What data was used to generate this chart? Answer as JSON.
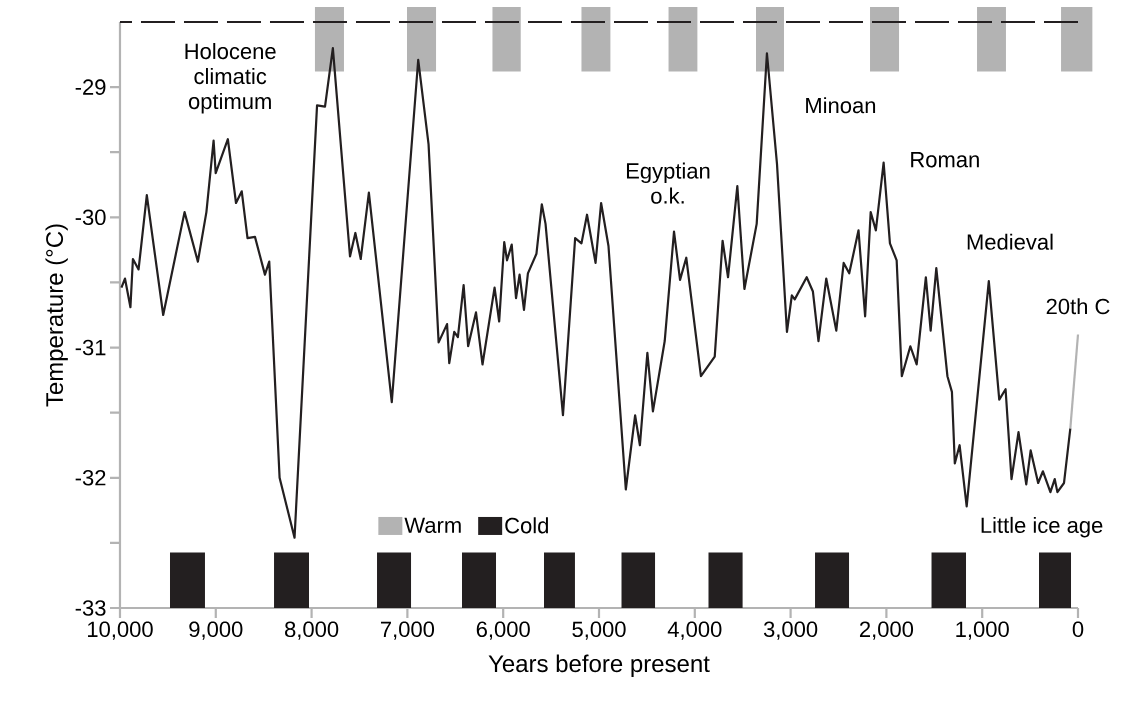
{
  "chart_data": {
    "type": "line",
    "xlabel": "Years before present",
    "ylabel": "Temperature (°C)",
    "xlim": [
      10000,
      0
    ],
    "ylim": [
      -33,
      -28.5
    ],
    "xticks": [
      {
        "value": 10000,
        "label": "10,000"
      },
      {
        "value": 9000,
        "label": "9,000"
      },
      {
        "value": 8000,
        "label": "8,000"
      },
      {
        "value": 7000,
        "label": "7,000"
      },
      {
        "value": 6000,
        "label": "6,000"
      },
      {
        "value": 5000,
        "label": "5,000"
      },
      {
        "value": 4000,
        "label": "4,000"
      },
      {
        "value": 3000,
        "label": "3,000"
      },
      {
        "value": 2000,
        "label": "2,000"
      },
      {
        "value": 1000,
        "label": "1,000"
      },
      0
    ],
    "yticks": [
      -33,
      {
        "value": -32.5,
        "label": null
      },
      -32,
      {
        "value": -31.5,
        "label": null
      },
      -31,
      {
        "value": -30.5,
        "label": null
      },
      -30,
      {
        "value": -29.5,
        "label": null
      },
      -29
    ],
    "series": [
      {
        "color": "#231f20",
        "x": [
          9985,
          9948,
          9891,
          9865,
          9806,
          9720,
          9549,
          9326,
          9187,
          9098,
          9023,
          9001,
          8874,
          8789,
          8729,
          8669,
          8591,
          8487,
          8442,
          8334,
          8178,
          7943,
          7860,
          7778,
          7599,
          7543,
          7487,
          7402,
          7163,
          6887,
          6779,
          6674,
          6586,
          6563,
          6511,
          6473,
          6413,
          6366,
          6284,
          6216,
          6090,
          6042,
          5989,
          5960,
          5911,
          5866,
          5829,
          5783,
          5742,
          5653,
          5597,
          5558,
          5376,
          5249,
          5183,
          5125,
          5036,
          4978,
          4901,
          4720,
          4623,
          4573,
          4495,
          4437,
          4314,
          4217,
          4154,
          4089,
          3936,
          3792,
          3710,
          3653,
          3556,
          3482,
          3354,
          3247,
          3142,
          3038,
          2987,
          2957,
          2832,
          2767,
          2709,
          2628,
          2523,
          2446,
          2388,
          2291,
          2222,
          2164,
          2110,
          2029,
          1963,
          1893,
          1839,
          1750,
          1684,
          1588,
          1538,
          1479,
          1363,
          1316,
          1286,
          1236,
          1162,
          931,
          822,
          756,
          694,
          621,
          540,
          494,
          416,
          366,
          288,
          243,
          215,
          146,
          80
        ],
        "values": [
          -30.54,
          -30.47,
          -30.69,
          -30.32,
          -30.4,
          -29.83,
          -30.75,
          -29.96,
          -30.34,
          -29.96,
          -29.41,
          -29.66,
          -29.4,
          -29.89,
          -29.8,
          -30.16,
          -30.15,
          -30.44,
          -30.34,
          -32.0,
          -32.46,
          -29.14,
          -29.15,
          -28.7,
          -30.3,
          -30.12,
          -30.32,
          -29.81,
          -31.42,
          -28.79,
          -29.44,
          -30.96,
          -30.82,
          -31.12,
          -30.88,
          -30.92,
          -30.52,
          -30.99,
          -30.73,
          -31.13,
          -30.54,
          -30.8,
          -30.19,
          -30.33,
          -30.21,
          -30.62,
          -30.44,
          -30.71,
          -30.43,
          -30.28,
          -29.9,
          -30.05,
          -31.52,
          -30.16,
          -30.2,
          -29.98,
          -30.35,
          -29.89,
          -30.22,
          -32.09,
          -31.52,
          -31.75,
          -31.04,
          -31.49,
          -30.95,
          -30.11,
          -30.48,
          -30.31,
          -31.22,
          -31.07,
          -30.18,
          -30.46,
          -29.76,
          -30.55,
          -30.05,
          -28.74,
          -29.59,
          -30.88,
          -30.6,
          -30.63,
          -30.46,
          -30.57,
          -30.95,
          -30.47,
          -30.87,
          -30.35,
          -30.43,
          -30.1,
          -30.76,
          -29.96,
          -30.1,
          -29.58,
          -30.2,
          -30.33,
          -31.22,
          -30.99,
          -31.13,
          -30.46,
          -30.87,
          -30.39,
          -31.22,
          -31.34,
          -31.89,
          -31.75,
          -32.22,
          -30.49,
          -31.4,
          -31.32,
          -32.01,
          -31.65,
          -32.05,
          -31.79,
          -32.04,
          -31.95,
          -32.11,
          -32.01,
          -32.11,
          -32.04,
          -31.62
        ]
      },
      {
        "color": "#b3b3b3",
        "x": [
          80,
          0
        ],
        "values": [
          -31.62,
          -30.9
        ]
      }
    ],
    "bands": [
      {
        "axis": "x",
        "from": 7965,
        "to": 7662,
        "color": "#b3b3b3",
        "label": "Warm"
      },
      {
        "axis": "x",
        "from": 7004,
        "to": 6701,
        "color": "#b3b3b3"
      },
      {
        "axis": "x",
        "from": 6112,
        "to": 5817,
        "color": "#b3b3b3"
      },
      {
        "axis": "x",
        "from": 5183,
        "to": 4881,
        "color": "#b3b3b3"
      },
      {
        "axis": "x",
        "from": 4274,
        "to": 3973,
        "color": "#b3b3b3"
      },
      {
        "axis": "x",
        "from": 3361,
        "to": 3069,
        "color": "#b3b3b3"
      },
      {
        "axis": "x",
        "from": 2171,
        "to": 1868,
        "color": "#b3b3b3"
      },
      {
        "axis": "x",
        "from": 1054,
        "to": 752,
        "color": "#b3b3b3"
      },
      {
        "axis": "x",
        "from": 177,
        "to": -150,
        "color": "#b3b3b3"
      },
      {
        "axis": "x",
        "from": 9478,
        "to": 9113,
        "color": "#231f20",
        "label": "Cold"
      },
      {
        "axis": "x",
        "from": 8392,
        "to": 8027,
        "color": "#231f20"
      },
      {
        "axis": "x",
        "from": 7317,
        "to": 6962,
        "color": "#231f20"
      },
      {
        "axis": "x",
        "from": 6430,
        "to": 6075,
        "color": "#231f20"
      },
      {
        "axis": "x",
        "from": 5574,
        "to": 5251,
        "color": "#231f20"
      },
      {
        "axis": "x",
        "from": 4765,
        "to": 4415,
        "color": "#231f20"
      },
      {
        "axis": "x",
        "from": 3857,
        "to": 3501,
        "color": "#231f20"
      },
      {
        "axis": "x",
        "from": 2745,
        "to": 2390,
        "color": "#231f20"
      },
      {
        "axis": "x",
        "from": 1529,
        "to": 1169,
        "color": "#231f20"
      },
      {
        "axis": "x",
        "from": 407,
        "to": 73,
        "color": "#231f20"
      }
    ],
    "ref_lines": [
      {
        "axis": "y",
        "value": -28.5,
        "color": "#231f20",
        "line_style": "dashed"
      }
    ],
    "annotations": [
      "Holocene climatic optimum",
      "Egyptian o.k.",
      "Minoan",
      "Roman",
      "Medieval",
      "20th C",
      "Little ice age"
    ],
    "grid": false,
    "legend": "bottom",
    "marker": "none",
    "line_style": "solid"
  }
}
